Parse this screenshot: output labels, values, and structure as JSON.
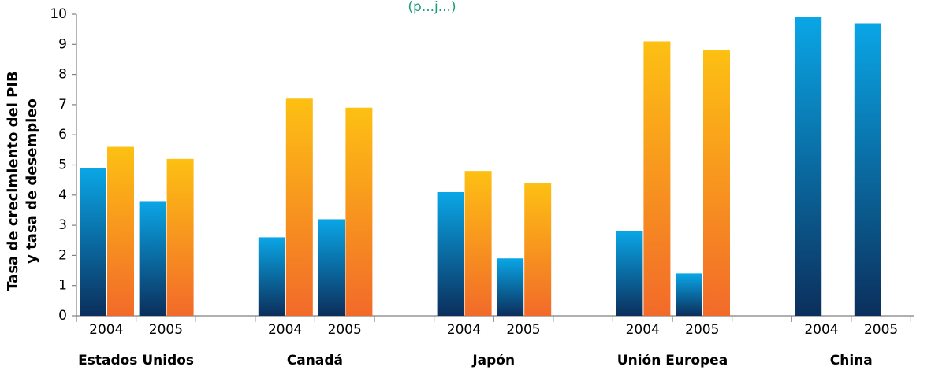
{
  "chart_data": {
    "type": "bar",
    "title_fragment": "(p...j...)",
    "ylabel": [
      "Tasa de crecimiento del PIB",
      "y tasa de desempleo"
    ],
    "xlabel": "",
    "ylim": [
      0,
      10
    ],
    "yticks": [
      0,
      1,
      2,
      3,
      4,
      5,
      6,
      7,
      8,
      9,
      10
    ],
    "grid": false,
    "legend": "none",
    "colors": {
      "growth_top": "#0aa6e6",
      "growth_bottom": "#0b2f5c",
      "unemployment_top": "#fdc013",
      "unemployment_bottom": "#f26a2a",
      "axis": "#808080",
      "title": "#1a9c7a"
    },
    "groups": [
      {
        "label": "Estados Unidos",
        "years": [
          {
            "year": "2004",
            "growth": 4.9,
            "unemployment": 5.6
          },
          {
            "year": "2005",
            "growth": 3.8,
            "unemployment": 5.2
          }
        ]
      },
      {
        "label": "Canadá",
        "years": [
          {
            "year": "2004",
            "growth": 2.6,
            "unemployment": 7.2
          },
          {
            "year": "2005",
            "growth": 3.2,
            "unemployment": 6.9
          }
        ]
      },
      {
        "label": "Japón",
        "years": [
          {
            "year": "2004",
            "growth": 4.1,
            "unemployment": 4.8
          },
          {
            "year": "2005",
            "growth": 1.9,
            "unemployment": 4.4
          }
        ]
      },
      {
        "label": "Unión Europea",
        "years": [
          {
            "year": "2004",
            "growth": 2.8,
            "unemployment": 9.1
          },
          {
            "year": "2005",
            "growth": 1.4,
            "unemployment": 8.8
          }
        ]
      },
      {
        "label": "China",
        "years": [
          {
            "year": "2004",
            "growth": 9.9,
            "unemployment": null
          },
          {
            "year": "2005",
            "growth": 9.7,
            "unemployment": null
          }
        ]
      }
    ]
  }
}
